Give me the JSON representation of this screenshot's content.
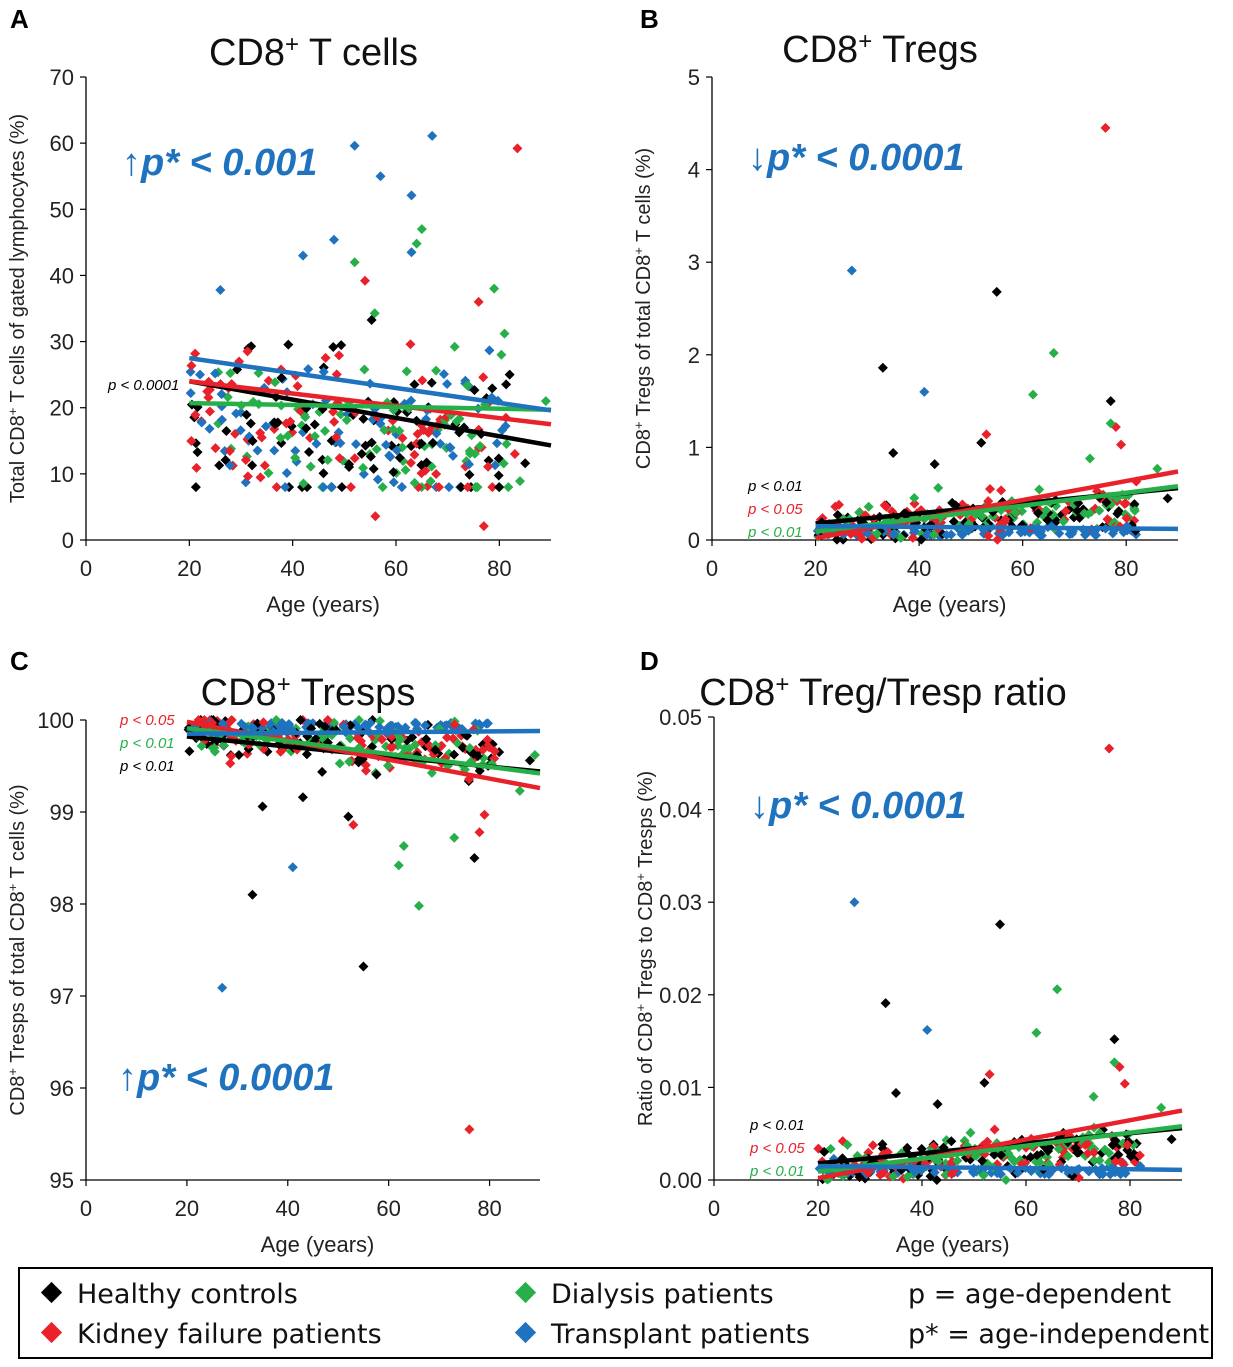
{
  "colors": {
    "healthy": "#000000",
    "kidney": "#e8212b",
    "dialysis": "#27b04a",
    "transplant": "#1f72be",
    "annotation_blue": "#1f72be"
  },
  "legend": {
    "healthy": "Healthy controls",
    "kidney": "Kidney failure patients",
    "dialysis": "Dialysis patients",
    "transplant": "Transplant patients",
    "p_note": "p = age-dependent",
    "pstar_note": "p* = age-independent"
  },
  "chart_data": [
    {
      "panel": "A",
      "type": "scatter",
      "title": "CD8⁺ T cells",
      "xlabel": "Age (years)",
      "ylabel": "Total CD8⁺ T cells of gated lymphocytes (%)",
      "xlim": [
        0,
        90
      ],
      "ylim": [
        0,
        70
      ],
      "xticks": [
        0,
        20,
        40,
        60,
        80
      ],
      "yticks": [
        0,
        10,
        20,
        30,
        40,
        50,
        60,
        70
      ],
      "tick_decimals": 0,
      "big_annotation": "↑p* < 0.001",
      "big_annotation_position": "top-left",
      "p_labels": [
        {
          "text": "p < 0.0001",
          "color": "healthy"
        }
      ],
      "p_labels_position": "left-middle",
      "trend_lines": [
        {
          "group": "healthy",
          "x": [
            20,
            90
          ],
          "y": [
            24.0,
            14.3
          ]
        },
        {
          "group": "kidney",
          "x": [
            20,
            90
          ],
          "y": [
            24.0,
            17.5
          ]
        },
        {
          "group": "dialysis",
          "x": [
            20,
            90
          ],
          "y": [
            20.7,
            19.7
          ]
        },
        {
          "group": "transplant",
          "x": [
            20,
            90
          ],
          "y": [
            27.5,
            19.6
          ]
        }
      ],
      "outliers": [
        {
          "group": "transplant",
          "x": 52,
          "y": 59.6
        },
        {
          "group": "transplant",
          "x": 67,
          "y": 61.1
        },
        {
          "group": "transplant",
          "x": 57,
          "y": 55.0
        },
        {
          "group": "transplant",
          "x": 63,
          "y": 52.1
        },
        {
          "group": "kidney",
          "x": 83.5,
          "y": 59.2
        },
        {
          "group": "dialysis",
          "x": 65,
          "y": 47.0
        },
        {
          "group": "transplant",
          "x": 48,
          "y": 45.4
        },
        {
          "group": "dialysis",
          "x": 64,
          "y": 44.8
        },
        {
          "group": "transplant",
          "x": 63,
          "y": 43.5
        },
        {
          "group": "transplant",
          "x": 42,
          "y": 43.0
        },
        {
          "group": "dialysis",
          "x": 52,
          "y": 42.0
        },
        {
          "group": "kidney",
          "x": 54,
          "y": 39.2
        },
        {
          "group": "dialysis",
          "x": 79,
          "y": 38.0
        },
        {
          "group": "transplant",
          "x": 26,
          "y": 37.8
        },
        {
          "group": "kidney",
          "x": 76,
          "y": 36.0
        },
        {
          "group": "dialysis",
          "x": 81,
          "y": 31.2
        },
        {
          "group": "kidney",
          "x": 56,
          "y": 3.6
        },
        {
          "group": "kidney",
          "x": 77,
          "y": 2.1
        },
        {
          "group": "dialysis",
          "x": 89,
          "y": 21.0
        },
        {
          "group": "healthy",
          "x": 85,
          "y": 11.6
        },
        {
          "group": "dialysis",
          "x": 84,
          "y": 8.9
        },
        {
          "group": "kidney",
          "x": 83,
          "y": 13.0
        },
        {
          "group": "healthy",
          "x": 27,
          "y": 12.1
        },
        {
          "group": "healthy",
          "x": 82,
          "y": 25.0
        }
      ],
      "cloud": {
        "x_range": [
          20,
          82
        ],
        "y_min": 8,
        "y_max": 37,
        "n": 340,
        "center": 20,
        "slope": -0.1,
        "spread": 6
      }
    },
    {
      "panel": "B",
      "type": "scatter",
      "title": "CD8⁺ Tregs",
      "xlabel": "Age (years)",
      "ylabel": "CD8⁺ Tregs of total CD8⁺ T cells (%)",
      "xlim": [
        0,
        90
      ],
      "ylim": [
        0,
        5
      ],
      "xticks": [
        0,
        20,
        40,
        60,
        80
      ],
      "yticks": [
        0,
        1,
        2,
        3,
        4,
        5
      ],
      "tick_decimals": 0,
      "big_annotation": "↓p* < 0.0001",
      "big_annotation_position": "top-left",
      "p_labels": [
        {
          "text": "p < 0.01",
          "color": "healthy"
        },
        {
          "text": "p < 0.05",
          "color": "kidney"
        },
        {
          "text": "p < 0.01",
          "color": "dialysis"
        }
      ],
      "p_labels_position": "bottom-left",
      "trend_lines": [
        {
          "group": "healthy",
          "x": [
            20,
            90
          ],
          "y": [
            0.18,
            0.56
          ]
        },
        {
          "group": "kidney",
          "x": [
            20,
            90
          ],
          "y": [
            0.02,
            0.74
          ]
        },
        {
          "group": "dialysis",
          "x": [
            20,
            90
          ],
          "y": [
            0.09,
            0.58
          ]
        },
        {
          "group": "transplant",
          "x": [
            20,
            90
          ],
          "y": [
            0.15,
            0.12
          ]
        }
      ],
      "outliers": [
        {
          "group": "kidney",
          "x": 76,
          "y": 4.45
        },
        {
          "group": "transplant",
          "x": 27,
          "y": 2.91
        },
        {
          "group": "healthy",
          "x": 55,
          "y": 2.68
        },
        {
          "group": "dialysis",
          "x": 66,
          "y": 2.02
        },
        {
          "group": "healthy",
          "x": 33,
          "y": 1.86
        },
        {
          "group": "transplant",
          "x": 41,
          "y": 1.6
        },
        {
          "group": "dialysis",
          "x": 62,
          "y": 1.57
        },
        {
          "group": "healthy",
          "x": 77,
          "y": 1.5
        },
        {
          "group": "kidney",
          "x": 78,
          "y": 1.22
        },
        {
          "group": "dialysis",
          "x": 77,
          "y": 1.26
        },
        {
          "group": "kidney",
          "x": 53,
          "y": 1.14
        },
        {
          "group": "healthy",
          "x": 52,
          "y": 1.05
        },
        {
          "group": "kidney",
          "x": 79,
          "y": 1.03
        },
        {
          "group": "healthy",
          "x": 35,
          "y": 0.94
        },
        {
          "group": "dialysis",
          "x": 73,
          "y": 0.88
        },
        {
          "group": "healthy",
          "x": 43,
          "y": 0.82
        },
        {
          "group": "dialysis",
          "x": 86,
          "y": 0.77
        },
        {
          "group": "healthy",
          "x": 88,
          "y": 0.45
        }
      ],
      "cloud": {
        "x_range": [
          20,
          82
        ],
        "y_min": 0.0,
        "y_max": 0.8,
        "n": 360,
        "center": 0.12,
        "slope": 0.004,
        "spread": 0.14
      }
    },
    {
      "panel": "C",
      "type": "scatter",
      "title": "CD8⁺ Tresps",
      "xlabel": "Age (years)",
      "ylabel": "CD8⁺ Tresps of total CD8⁺ T cells (%)",
      "xlim": [
        0,
        90
      ],
      "ylim": [
        95,
        100
      ],
      "xticks": [
        0,
        20,
        40,
        60,
        80
      ],
      "yticks": [
        95,
        96,
        97,
        98,
        99,
        100
      ],
      "tick_decimals": 0,
      "big_annotation": "↑p* < 0.0001",
      "big_annotation_position": "bottom-left",
      "p_labels": [
        {
          "text": "p < 0.05",
          "color": "kidney"
        },
        {
          "text": "p < 0.01",
          "color": "dialysis"
        },
        {
          "text": "p < 0.01",
          "color": "healthy"
        }
      ],
      "p_labels_position": "top-left",
      "trend_lines": [
        {
          "group": "healthy",
          "x": [
            20,
            90
          ],
          "y": [
            99.82,
            99.44
          ]
        },
        {
          "group": "kidney",
          "x": [
            20,
            90
          ],
          "y": [
            99.98,
            99.26
          ]
        },
        {
          "group": "dialysis",
          "x": [
            20,
            90
          ],
          "y": [
            99.91,
            99.42
          ]
        },
        {
          "group": "transplant",
          "x": [
            20,
            90
          ],
          "y": [
            99.85,
            99.88
          ]
        }
      ],
      "outliers": [
        {
          "group": "kidney",
          "x": 76,
          "y": 95.55
        },
        {
          "group": "transplant",
          "x": 27,
          "y": 97.09
        },
        {
          "group": "healthy",
          "x": 55,
          "y": 97.32
        },
        {
          "group": "dialysis",
          "x": 66,
          "y": 97.98
        },
        {
          "group": "healthy",
          "x": 33,
          "y": 98.1
        },
        {
          "group": "transplant",
          "x": 41,
          "y": 98.4
        },
        {
          "group": "dialysis",
          "x": 62,
          "y": 98.42
        },
        {
          "group": "healthy",
          "x": 77,
          "y": 98.5
        },
        {
          "group": "dialysis",
          "x": 63,
          "y": 98.63
        },
        {
          "group": "kidney",
          "x": 78,
          "y": 98.78
        },
        {
          "group": "dialysis",
          "x": 73,
          "y": 98.72
        },
        {
          "group": "kidney",
          "x": 53,
          "y": 98.86
        },
        {
          "group": "healthy",
          "x": 52,
          "y": 98.95
        },
        {
          "group": "kidney",
          "x": 79,
          "y": 98.97
        },
        {
          "group": "healthy",
          "x": 35,
          "y": 99.06
        },
        {
          "group": "healthy",
          "x": 43,
          "y": 99.16
        },
        {
          "group": "dialysis",
          "x": 86,
          "y": 99.23
        },
        {
          "group": "healthy",
          "x": 88,
          "y": 99.56
        },
        {
          "group": "dialysis",
          "x": 89,
          "y": 99.62
        }
      ],
      "cloud": {
        "x_range": [
          20,
          82
        ],
        "y_min": 99.2,
        "y_max": 100.0,
        "n": 360,
        "center": 99.88,
        "slope": -0.004,
        "spread": 0.14
      }
    },
    {
      "panel": "D",
      "type": "scatter",
      "title": "CD8⁺ Treg/Tresp ratio",
      "xlabel": "Age (years)",
      "ylabel": "Ratio of CD8⁺ Tregs to CD8⁺ Tresps (%)",
      "xlim": [
        0,
        90
      ],
      "ylim": [
        0,
        0.05
      ],
      "xticks": [
        0,
        20,
        40,
        60,
        80
      ],
      "yticks": [
        0.0,
        0.01,
        0.02,
        0.03,
        0.04,
        0.05
      ],
      "tick_decimals": 2,
      "big_annotation": "↓p* < 0.0001",
      "big_annotation_position": "top-left",
      "p_labels": [
        {
          "text": "p < 0.01",
          "color": "healthy"
        },
        {
          "text": "p < 0.05",
          "color": "kidney"
        },
        {
          "text": "p < 0.01",
          "color": "dialysis"
        }
      ],
      "p_labels_position": "bottom-left",
      "trend_lines": [
        {
          "group": "healthy",
          "x": [
            20,
            90
          ],
          "y": [
            0.0018,
            0.0056
          ]
        },
        {
          "group": "kidney",
          "x": [
            20,
            90
          ],
          "y": [
            0.0002,
            0.0075
          ]
        },
        {
          "group": "dialysis",
          "x": [
            20,
            90
          ],
          "y": [
            0.0009,
            0.0058
          ]
        },
        {
          "group": "transplant",
          "x": [
            20,
            90
          ],
          "y": [
            0.0015,
            0.0011
          ]
        }
      ],
      "outliers": [
        {
          "group": "kidney",
          "x": 76,
          "y": 0.0466
        },
        {
          "group": "transplant",
          "x": 27,
          "y": 0.03
        },
        {
          "group": "healthy",
          "x": 55,
          "y": 0.0276
        },
        {
          "group": "dialysis",
          "x": 66,
          "y": 0.0206
        },
        {
          "group": "healthy",
          "x": 33,
          "y": 0.0191
        },
        {
          "group": "transplant",
          "x": 41,
          "y": 0.0162
        },
        {
          "group": "dialysis",
          "x": 62,
          "y": 0.0159
        },
        {
          "group": "healthy",
          "x": 77,
          "y": 0.0152
        },
        {
          "group": "kidney",
          "x": 78,
          "y": 0.0122
        },
        {
          "group": "dialysis",
          "x": 77,
          "y": 0.0127
        },
        {
          "group": "kidney",
          "x": 53,
          "y": 0.0114
        },
        {
          "group": "healthy",
          "x": 52,
          "y": 0.0105
        },
        {
          "group": "kidney",
          "x": 79,
          "y": 0.0104
        },
        {
          "group": "healthy",
          "x": 35,
          "y": 0.0094
        },
        {
          "group": "dialysis",
          "x": 73,
          "y": 0.009
        },
        {
          "group": "healthy",
          "x": 43,
          "y": 0.0082
        },
        {
          "group": "dialysis",
          "x": 86,
          "y": 0.0078
        },
        {
          "group": "healthy",
          "x": 88,
          "y": 0.0044
        }
      ],
      "cloud": {
        "x_range": [
          20,
          82
        ],
        "y_min": 0.0,
        "y_max": 0.008,
        "n": 360,
        "center": 0.0012,
        "slope": 4e-05,
        "spread": 0.0014
      }
    }
  ]
}
